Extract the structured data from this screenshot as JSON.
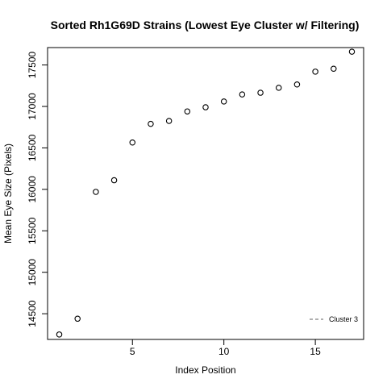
{
  "chart_data": {
    "type": "scatter",
    "title": "Sorted Rh1G69D Strains (Lowest Eye Cluster w/ Filtering)",
    "xlabel": "Index Position",
    "ylabel": "Mean Eye Size (Pixels)",
    "xlim": [
      0.36,
      17.64
    ],
    "ylim": [
      14190,
      17710
    ],
    "xticks": [
      5,
      10,
      15
    ],
    "yticks": [
      14500,
      15000,
      15500,
      16000,
      16500,
      17000,
      17500
    ],
    "grid": false,
    "legend": {
      "position": "bottom-right",
      "entries": [
        {
          "label": "Cluster 3",
          "line_style": "dashed",
          "color": "#808080"
        }
      ]
    },
    "series": [
      {
        "marker": "open-circle",
        "color": "#000000",
        "x": [
          1,
          2,
          3,
          4,
          5,
          6,
          7,
          8,
          9,
          10,
          11,
          12,
          13,
          14,
          15,
          16,
          17
        ],
        "y": [
          14250,
          14440,
          15970,
          16110,
          16565,
          16790,
          16825,
          16940,
          16990,
          17060,
          17145,
          17165,
          17225,
          17265,
          17420,
          17455,
          17660
        ]
      }
    ]
  }
}
